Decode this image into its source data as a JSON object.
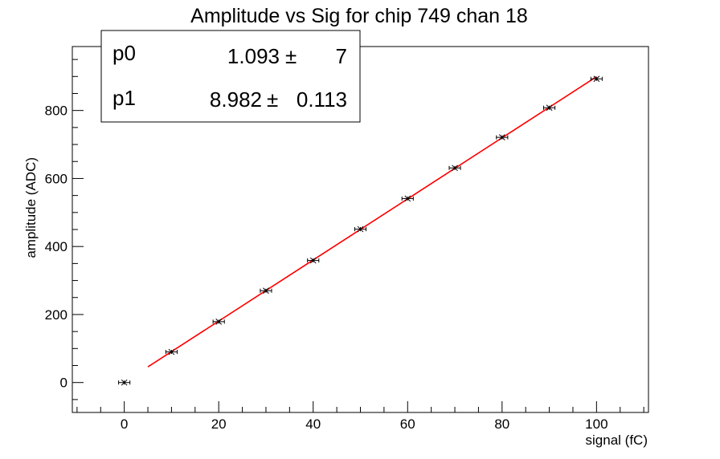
{
  "chart_data": {
    "type": "scatter",
    "title": "Amplitude vs Sig for chip 749 chan 18",
    "xlabel": "signal (fC)",
    "ylabel": "amplitude (ADC)",
    "xlim": [
      -11,
      111
    ],
    "ylim": [
      -88,
      988
    ],
    "x_ticks": [
      0,
      20,
      40,
      60,
      80,
      100
    ],
    "y_ticks": [
      0,
      200,
      400,
      600,
      800
    ],
    "grid": false,
    "legend": "none",
    "series": [
      {
        "x": [
          0,
          10,
          20,
          30,
          40,
          50,
          60,
          70,
          80,
          90,
          100
        ],
        "y": [
          0,
          90,
          179,
          270,
          359,
          451,
          541,
          631,
          721,
          808,
          893
        ],
        "x_error": 1.2,
        "y_error": 6,
        "color": "#000000"
      }
    ],
    "fit": {
      "x_range": [
        5,
        100
      ],
      "p0": 1.093,
      "p1": 8.982,
      "color": "#ff0000"
    },
    "stats_box": {
      "position": "top-left",
      "rows": [
        {
          "name": "p0",
          "value": "1.093",
          "pm": "±",
          "error": "7"
        },
        {
          "name": "p1",
          "value": "8.982",
          "pm": "±",
          "error": "0.113"
        }
      ]
    }
  }
}
